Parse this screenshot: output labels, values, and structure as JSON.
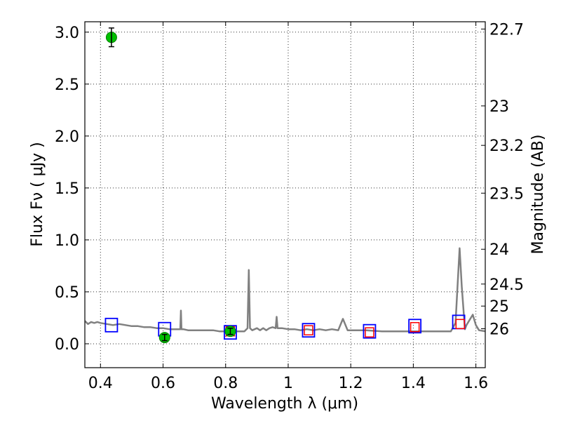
{
  "chart_data": {
    "type": "scatter",
    "xlabel": "Wavelength  λ (μm)",
    "ylabel": "Flux  Fν ( μJy )",
    "y2label": "Magnitude (AB)",
    "xlim": [
      0.35,
      1.63
    ],
    "ylim": [
      -0.23,
      3.1
    ],
    "grid": true,
    "x_ticks": [
      0.4,
      0.6,
      0.8,
      1.0,
      1.2,
      1.4,
      1.6
    ],
    "x_tick_labels": [
      "0.4",
      "0.6",
      "0.8",
      "1",
      "1.2",
      "1.4",
      "1.6"
    ],
    "y_ticks": [
      0.0,
      0.5,
      1.0,
      1.5,
      2.0,
      2.5,
      3.0
    ],
    "y_tick_labels": [
      "0.0",
      "0.5",
      "1.0",
      "1.5",
      "2.0",
      "2.5",
      "3.0"
    ],
    "y2_ticks": [
      {
        "label": "22.7",
        "flux": 3.03
      },
      {
        "label": "23",
        "flux": 2.29
      },
      {
        "label": "23.2",
        "flux": 1.91
      },
      {
        "label": "23.5",
        "flux": 1.45
      },
      {
        "label": "24",
        "flux": 0.91
      },
      {
        "label": "24.5",
        "flux": 0.575
      },
      {
        "label": "25",
        "flux": 0.363
      },
      {
        "label": "26",
        "flux": 0.145
      }
    ],
    "series": [
      {
        "kind": "line",
        "color": "#808080",
        "x": [
          0.35,
          0.36,
          0.37,
          0.38,
          0.39,
          0.4,
          0.42,
          0.44,
          0.46,
          0.48,
          0.5,
          0.52,
          0.54,
          0.56,
          0.58,
          0.6,
          0.62,
          0.64,
          0.655,
          0.657,
          0.659,
          0.665,
          0.68,
          0.7,
          0.72,
          0.74,
          0.76,
          0.78,
          0.8,
          0.82,
          0.84,
          0.86,
          0.87,
          0.874,
          0.878,
          0.885,
          0.9,
          0.91,
          0.92,
          0.93,
          0.94,
          0.95,
          0.96,
          0.963,
          0.966,
          0.98,
          1.0,
          1.02,
          1.04,
          1.06,
          1.08,
          1.1,
          1.12,
          1.14,
          1.16,
          1.175,
          1.19,
          1.2,
          1.25,
          1.3,
          1.35,
          1.4,
          1.45,
          1.5,
          1.52,
          1.535,
          1.548,
          1.555,
          1.565,
          1.57,
          1.59,
          1.6,
          1.61,
          1.63
        ],
        "y": [
          0.22,
          0.19,
          0.21,
          0.2,
          0.21,
          0.2,
          0.19,
          0.18,
          0.19,
          0.18,
          0.17,
          0.17,
          0.16,
          0.16,
          0.15,
          0.15,
          0.14,
          0.14,
          0.14,
          0.32,
          0.14,
          0.14,
          0.13,
          0.13,
          0.13,
          0.13,
          0.13,
          0.12,
          0.12,
          0.12,
          0.12,
          0.12,
          0.15,
          0.71,
          0.15,
          0.13,
          0.15,
          0.13,
          0.15,
          0.13,
          0.15,
          0.16,
          0.15,
          0.26,
          0.15,
          0.15,
          0.14,
          0.14,
          0.13,
          0.14,
          0.13,
          0.14,
          0.13,
          0.14,
          0.13,
          0.24,
          0.13,
          0.13,
          0.13,
          0.12,
          0.12,
          0.12,
          0.12,
          0.12,
          0.12,
          0.2,
          0.92,
          0.55,
          0.14,
          0.18,
          0.28,
          0.18,
          0.13,
          0.12
        ]
      },
      {
        "kind": "blue-open-squares",
        "color": "#0000ff",
        "x": [
          0.435,
          0.605,
          0.815,
          1.065,
          1.26,
          1.405,
          1.545
        ],
        "y": [
          0.18,
          0.14,
          0.11,
          0.13,
          0.12,
          0.17,
          0.21
        ]
      },
      {
        "kind": "red-open-squares",
        "color": "#ff0000",
        "x": [
          0.815,
          1.065,
          1.26,
          1.405,
          1.55
        ],
        "y": [
          0.12,
          0.13,
          0.11,
          0.16,
          0.19
        ]
      },
      {
        "kind": "green-points-with-errors",
        "color": "#00c000",
        "x": [
          0.435,
          0.605,
          0.815
        ],
        "y": [
          2.95,
          0.06,
          0.12
        ],
        "yerr": [
          0.09,
          0.03,
          0.03
        ]
      }
    ]
  }
}
